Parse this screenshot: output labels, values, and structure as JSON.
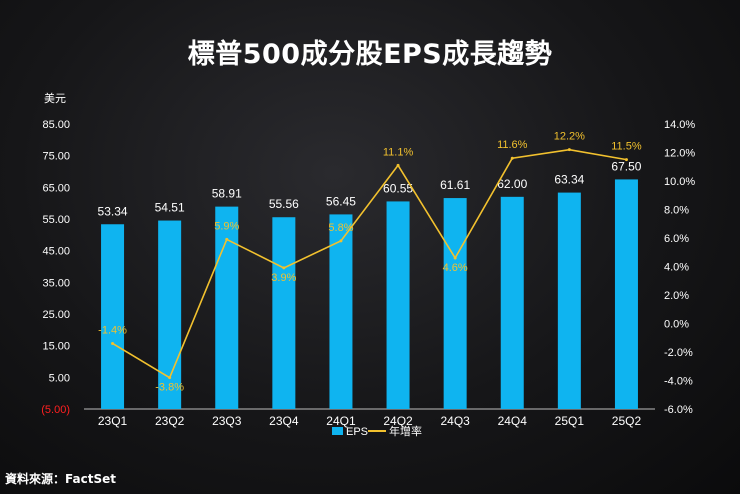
{
  "title": "標普500成分股EPS成長趨勢",
  "source": "資料來源：FactSet",
  "colors": {
    "bar": "#0fb4f0",
    "line": "#f2c12e",
    "negative": "#ff2020",
    "axis": "#ffffff"
  },
  "chart_data": {
    "type": "bar+line",
    "title": "標普500成分股EPS成長趨勢",
    "categories": [
      "23Q1",
      "23Q2",
      "23Q3",
      "23Q4",
      "24Q1",
      "24Q2",
      "24Q3",
      "24Q4",
      "25Q1",
      "25Q2"
    ],
    "y_left": {
      "label": "美元",
      "min": -5,
      "max": 85,
      "ticks": [
        -5,
        5,
        15,
        25,
        35,
        45,
        55,
        65,
        75,
        85
      ],
      "tick_labels": [
        "(5.00)",
        "5.00",
        "15.00",
        "25.00",
        "35.00",
        "45.00",
        "55.00",
        "65.00",
        "75.00",
        "85.00"
      ]
    },
    "y_right": {
      "min": -6,
      "max": 14,
      "ticks": [
        -6,
        -4,
        -2,
        0,
        2,
        4,
        6,
        8,
        10,
        12,
        14
      ],
      "tick_labels": [
        "-6.0%",
        "-4.0%",
        "-2.0%",
        "0.0%",
        "2.0%",
        "4.0%",
        "6.0%",
        "8.0%",
        "10.0%",
        "12.0%",
        "14.0%"
      ]
    },
    "series": [
      {
        "name": "EPS",
        "type": "bar",
        "axis": "left",
        "values": [
          53.34,
          54.51,
          58.91,
          55.56,
          56.45,
          60.55,
          61.61,
          62.0,
          63.34,
          67.5
        ],
        "labels": [
          "53.34",
          "54.51",
          "58.91",
          "55.56",
          "56.45",
          "60.55",
          "61.61",
          "62.00",
          "63.34",
          "67.50"
        ]
      },
      {
        "name": "年增率",
        "type": "line",
        "axis": "right",
        "values": [
          -1.4,
          -3.8,
          5.9,
          3.9,
          5.8,
          11.1,
          4.6,
          11.6,
          12.2,
          11.5
        ],
        "labels": [
          "-1.4%",
          "-3.8%",
          "5.9%",
          "3.9%",
          "5.8%",
          "11.1%",
          "4.6%",
          "11.6%",
          "12.2%",
          "11.5%"
        ]
      }
    ],
    "legend": {
      "position": "bottom",
      "items": [
        "EPS",
        "年增率"
      ]
    }
  }
}
